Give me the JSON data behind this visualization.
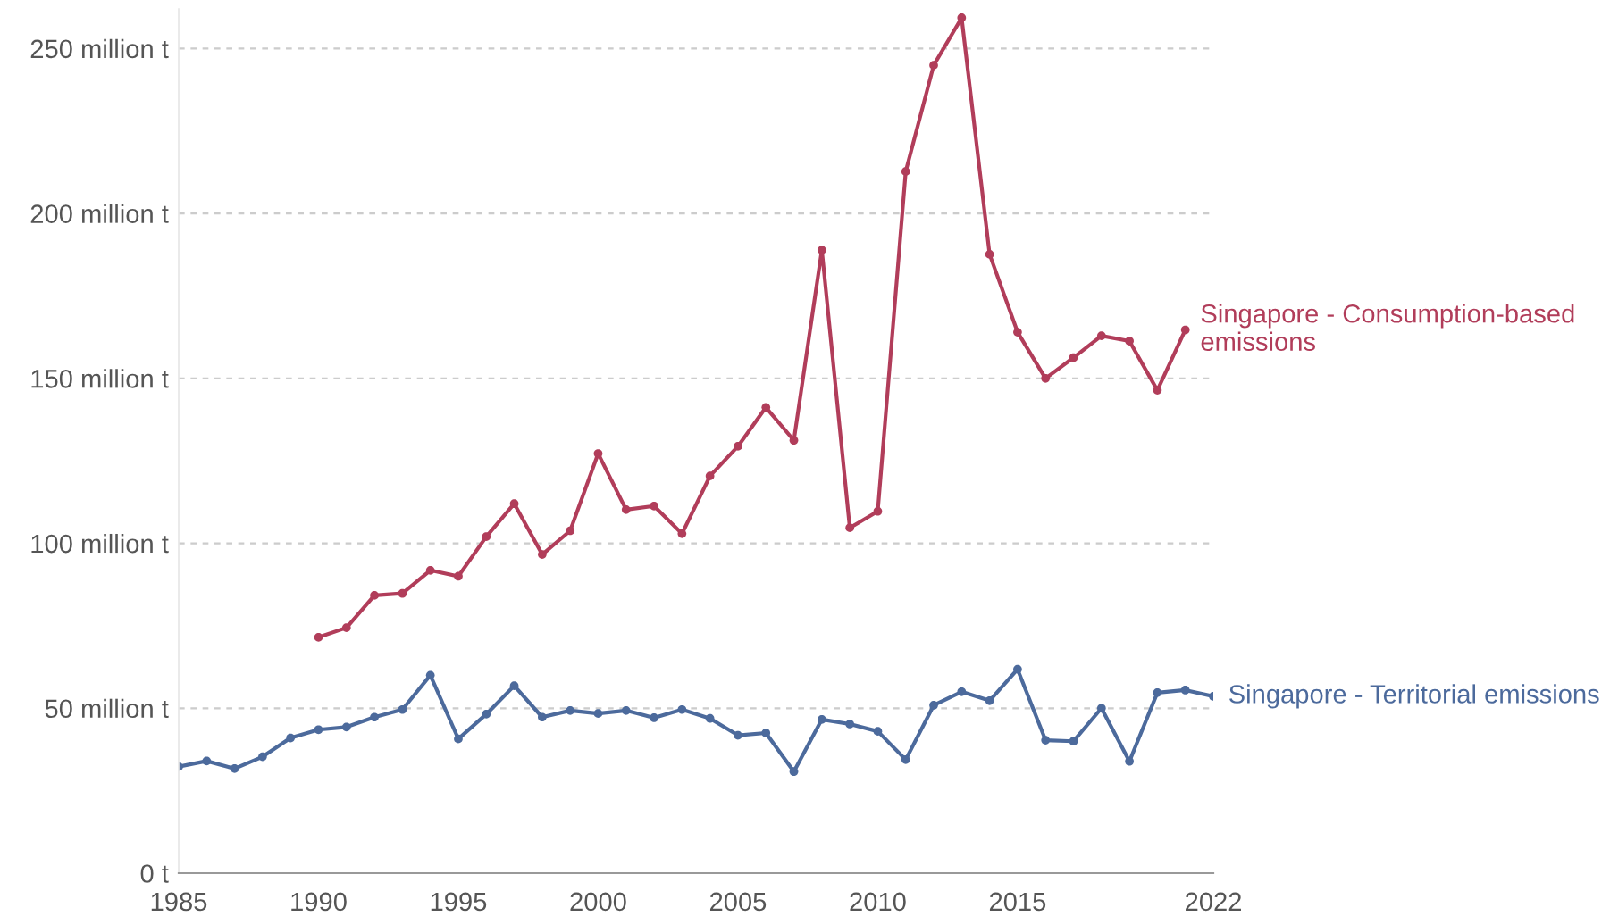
{
  "chart_data": {
    "type": "line",
    "x": [
      1985,
      1986,
      1987,
      1988,
      1989,
      1990,
      1991,
      1992,
      1993,
      1994,
      1995,
      1996,
      1997,
      1998,
      1999,
      2000,
      2001,
      2002,
      2003,
      2004,
      2005,
      2006,
      2007,
      2008,
      2009,
      2010,
      2011,
      2012,
      2013,
      2014,
      2015,
      2016,
      2017,
      2018,
      2019,
      2020,
      2021,
      2022
    ],
    "series": [
      {
        "name": "Singapore - Consumption-based emissions",
        "color": "#b13d5a",
        "x": [
          1990,
          1991,
          1992,
          1993,
          1994,
          1995,
          1996,
          1997,
          1998,
          1999,
          2000,
          2001,
          2002,
          2003,
          2004,
          2005,
          2006,
          2007,
          2008,
          2009,
          2010,
          2011,
          2012,
          2013,
          2014,
          2015,
          2016,
          2017,
          2018,
          2019,
          2020,
          2021
        ],
        "values": [
          71.5,
          74.4,
          84.2,
          84.8,
          91.8,
          90,
          102,
          112,
          96.6,
          103.8,
          127.2,
          110.2,
          111.3,
          102.9,
          120.4,
          129.4,
          141.2,
          131.2,
          188.9,
          104.7,
          109.7,
          212.7,
          244.9,
          259.3,
          187.6,
          164,
          150,
          156.3,
          162.9,
          161.3,
          146.4,
          164.7
        ]
      },
      {
        "name": "Singapore - Territorial emissions",
        "color": "#4c6a9c",
        "values": [
          32.3,
          34,
          31.7,
          35.3,
          41,
          43.5,
          44.3,
          47.3,
          49.6,
          60,
          40.7,
          48.2,
          56.8,
          47.3,
          49.3,
          48.4,
          49.3,
          47.1,
          49.6,
          46.9,
          41.8,
          42.5,
          30.8,
          46.6,
          45.2,
          43,
          34.4,
          50.9,
          55,
          52.3,
          61.8,
          40.3,
          40,
          50,
          33.9,
          54.7,
          55.5,
          53.6
        ]
      }
    ],
    "xlim": [
      1985,
      2022
    ],
    "xticks": [
      1985,
      1990,
      1995,
      2000,
      2005,
      2010,
      2015,
      2022
    ],
    "ylim": [
      0,
      262
    ],
    "yticks": [
      {
        "value": 0,
        "label": "0 t"
      },
      {
        "value": 50,
        "label": "50 million t"
      },
      {
        "value": 100,
        "label": "100 million t"
      },
      {
        "value": 150,
        "label": "150 million t"
      },
      {
        "value": 200,
        "label": "200 million t"
      },
      {
        "value": 250,
        "label": "250 million t"
      }
    ],
    "grid": "y",
    "marker": "circle",
    "line_style": "solid",
    "legend": "right"
  }
}
